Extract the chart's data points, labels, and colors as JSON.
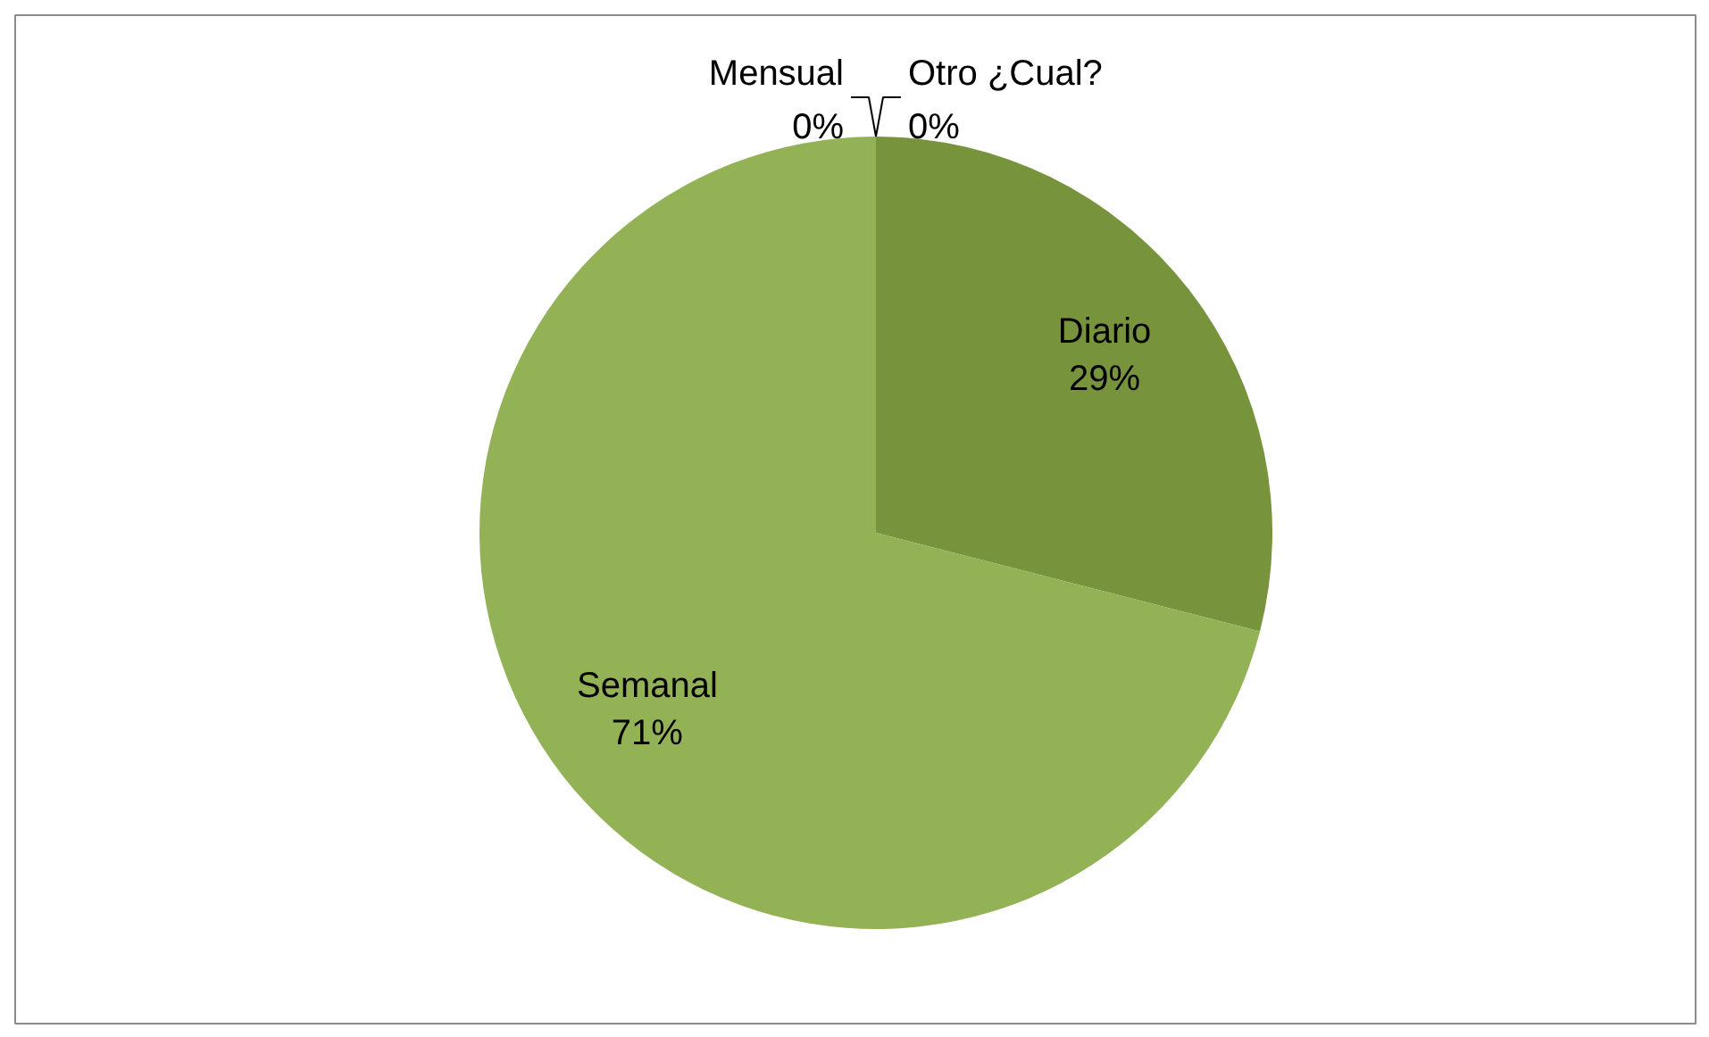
{
  "chart_data": {
    "type": "pie",
    "categories": [
      "Diario",
      "Semanal",
      "Mensual",
      "Otro ¿Cual?"
    ],
    "values": [
      29,
      71,
      0,
      0
    ],
    "colors": [
      "#77933c",
      "#93b155",
      "#a9c477",
      "#c3d69b"
    ],
    "value_labels": [
      "29%",
      "71%",
      "0%",
      "0%"
    ]
  }
}
